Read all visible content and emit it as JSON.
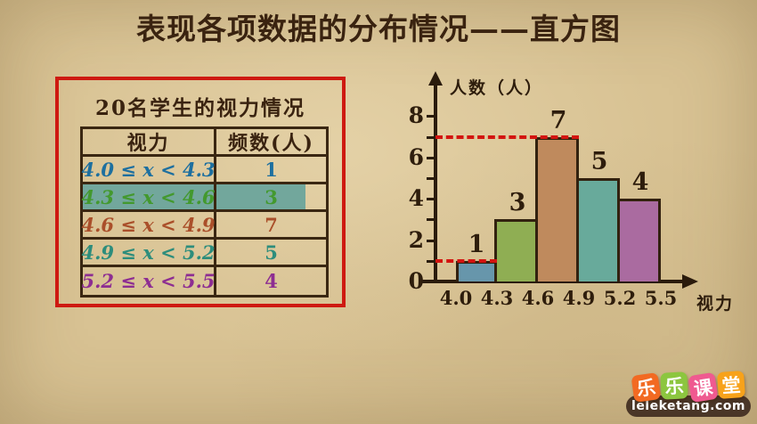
{
  "title": "表现各项数据的分布情况——直方图",
  "table": {
    "title": "20名学生的视力情况",
    "headers": [
      "视力",
      "频数(人)"
    ],
    "rows": [
      {
        "range": "4.0 ≤ x < 4.3",
        "freq": "1",
        "color": "#1d6f9f",
        "highlighted": false
      },
      {
        "range": "4.3 ≤ x < 4.6",
        "freq": "3",
        "color": "#43992e",
        "highlighted": true
      },
      {
        "range": "4.6 ≤ x < 4.9",
        "freq": "7",
        "color": "#aa4f2a",
        "highlighted": false
      },
      {
        "range": "4.9 ≤ x < 5.2",
        "freq": "5",
        "color": "#2d8d7c",
        "highlighted": false
      },
      {
        "range": "5.2 ≤ x < 5.5",
        "freq": "4",
        "color": "#8d2d92",
        "highlighted": false
      }
    ],
    "highlight_color": "#72a79c"
  },
  "chart_data": {
    "type": "bar",
    "title": "",
    "ylabel": "人数（人）",
    "xlabel": "视力",
    "bin_edges": [
      4.0,
      4.3,
      4.6,
      4.9,
      5.2,
      5.5
    ],
    "categories": [
      "4.0–4.3",
      "4.3–4.6",
      "4.6–4.9",
      "4.9–5.2",
      "5.2–5.5"
    ],
    "values": [
      1,
      3,
      7,
      5,
      4
    ],
    "bar_labels": [
      "1",
      "3",
      "7",
      "5",
      "4"
    ],
    "x_tick_labels": [
      "4.0",
      "4.3",
      "4.6",
      "4.9",
      "5.2",
      "5.5"
    ],
    "y_tick_labels": [
      "0",
      "2",
      "4",
      "6",
      "8"
    ],
    "minor_y_ticks": [
      1,
      2,
      3,
      4,
      5,
      6,
      7,
      8
    ],
    "ylim": [
      0,
      9
    ],
    "grid": false,
    "legend": false,
    "bar_colors": [
      "#6796ab",
      "#8fae53",
      "#bf8a5d",
      "#68aa9b",
      "#aa6ba0"
    ],
    "annotations": [
      {
        "type": "dashed_line",
        "value": 7,
        "color": "#d31410"
      },
      {
        "type": "dashed_line",
        "value": 1,
        "color": "#d31410"
      }
    ]
  },
  "colors": {
    "background": "#d8c293",
    "title_text": "#3a2310",
    "red_box_border": "#ce1911",
    "table_border": "#3a2712",
    "axis": "#2a1b0c",
    "bar_outline": "#32210f",
    "value_text": "#2e1d0c"
  },
  "logo": {
    "tiles": [
      {
        "char": "乐",
        "color": "#f26a22"
      },
      {
        "char": "乐",
        "color": "#8cc63f"
      },
      {
        "char": "课",
        "color": "#ef5a90"
      },
      {
        "char": "堂",
        "color": "#f7a21b"
      }
    ],
    "domain": "leleketang.com",
    "bar_color": "#4a3627"
  }
}
